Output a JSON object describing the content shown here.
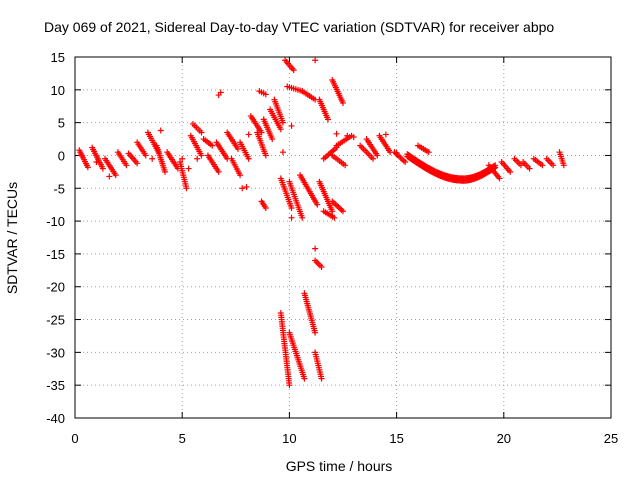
{
  "chart_data": {
    "type": "scatter",
    "title": "Day 069 of 2021, Sidereal Day-to-day VTEC variation (SDTVAR) for receiver abpo",
    "xlabel": "GPS time / hours",
    "ylabel": "SDTVAR / TECUs",
    "xlim": [
      0,
      25
    ],
    "ylim": [
      -40,
      15
    ],
    "xticks": [
      "0",
      "5",
      "10",
      "15",
      "20",
      "25"
    ],
    "yticks": [
      "15",
      "10",
      "5",
      "0",
      "-5",
      "-10",
      "-15",
      "-20",
      "-25",
      "-30",
      "-35",
      "-40"
    ],
    "grid": true,
    "marker": "+",
    "color": "#ff0000",
    "segments": [
      {
        "x": [
          0.2,
          0.6
        ],
        "y": [
          0.8,
          -1.8
        ]
      },
      {
        "x": [
          0.8,
          1.3
        ],
        "y": [
          1.2,
          -2.0
        ]
      },
      {
        "x": [
          1.4,
          1.9
        ],
        "y": [
          -0.5,
          -3.0
        ]
      },
      {
        "x": [
          2.0,
          2.4
        ],
        "y": [
          0.5,
          -1.5
        ]
      },
      {
        "x": [
          2.5,
          2.9
        ],
        "y": [
          0.3,
          -1.2
        ]
      },
      {
        "x": [
          2.9,
          3.3
        ],
        "y": [
          2.0,
          0.0
        ]
      },
      {
        "x": [
          3.4,
          3.9
        ],
        "y": [
          3.5,
          0.5
        ]
      },
      {
        "x": [
          3.8,
          4.2
        ],
        "y": [
          1.5,
          -2.5
        ]
      },
      {
        "x": [
          4.3,
          4.8
        ],
        "y": [
          0.5,
          -2.0
        ]
      },
      {
        "x": [
          4.9,
          5.2
        ],
        "y": [
          -1.0,
          -5.0
        ]
      },
      {
        "x": [
          5.4,
          5.9
        ],
        "y": [
          3.0,
          0.0
        ]
      },
      {
        "x": [
          5.5,
          5.9
        ],
        "y": [
          4.8,
          3.5
        ]
      },
      {
        "x": [
          6.0,
          6.4
        ],
        "y": [
          2.5,
          1.5
        ]
      },
      {
        "x": [
          6.2,
          6.7
        ],
        "y": [
          0.0,
          -2.5
        ]
      },
      {
        "x": [
          6.6,
          7.1
        ],
        "y": [
          2.0,
          -0.5
        ]
      },
      {
        "x": [
          7.1,
          7.6
        ],
        "y": [
          3.5,
          1.0
        ]
      },
      {
        "x": [
          7.3,
          7.7
        ],
        "y": [
          -0.5,
          -3.0
        ]
      },
      {
        "x": [
          7.7,
          8.1
        ],
        "y": [
          2.0,
          -0.5
        ]
      },
      {
        "x": [
          8.2,
          8.7
        ],
        "y": [
          6.0,
          3.5
        ]
      },
      {
        "x": [
          8.5,
          8.9
        ],
        "y": [
          3.5,
          0.0
        ]
      },
      {
        "x": [
          8.8,
          9.2
        ],
        "y": [
          5.5,
          2.5
        ]
      },
      {
        "x": [
          9.1,
          9.6
        ],
        "y": [
          7.0,
          4.0
        ]
      },
      {
        "x": [
          9.3,
          9.7
        ],
        "y": [
          8.5,
          5.0
        ]
      },
      {
        "x": [
          8.6,
          8.9
        ],
        "y": [
          9.8,
          9.3
        ]
      },
      {
        "x": [
          8.7,
          8.9
        ],
        "y": [
          -7.0,
          -8.0
        ]
      },
      {
        "x": [
          9.8,
          10.2
        ],
        "y": [
          14.5,
          13.0
        ]
      },
      {
        "x": [
          9.9,
          10.6
        ],
        "y": [
          10.5,
          9.8
        ]
      },
      {
        "x": [
          10.6,
          11.2
        ],
        "y": [
          9.8,
          8.5
        ]
      },
      {
        "x": [
          11.4,
          11.8
        ],
        "y": [
          8.5,
          5.5
        ]
      },
      {
        "x": [
          12.0,
          12.5
        ],
        "y": [
          11.5,
          8.0
        ]
      },
      {
        "x": [
          9.6,
          10.1
        ],
        "y": [
          -3.5,
          -8.0
        ]
      },
      {
        "x": [
          10.0,
          10.6
        ],
        "y": [
          -4.0,
          -9.5
        ]
      },
      {
        "x": [
          10.5,
          11.3
        ],
        "y": [
          -3.0,
          -7.5
        ]
      },
      {
        "x": [
          9.6,
          10.0
        ],
        "y": [
          -24.0,
          -35.0
        ]
      },
      {
        "x": [
          10.0,
          10.7
        ],
        "y": [
          -27.0,
          -34.0
        ]
      },
      {
        "x": [
          10.7,
          11.2
        ],
        "y": [
          -21.0,
          -27.0
        ]
      },
      {
        "x": [
          11.2,
          11.5
        ],
        "y": [
          -30.0,
          -34.0
        ]
      },
      {
        "x": [
          11.2,
          11.5
        ],
        "y": [
          -16.0,
          -17.0
        ]
      },
      {
        "x": [
          11.4,
          12.0
        ],
        "y": [
          -4.0,
          -8.5
        ]
      },
      {
        "x": [
          11.6,
          12.1
        ],
        "y": [
          -8.5,
          -9.5
        ]
      },
      {
        "x": [
          12.0,
          12.5
        ],
        "y": [
          -7.0,
          -8.5
        ]
      },
      {
        "x": [
          11.6,
          12.2
        ],
        "y": [
          -0.5,
          1.2
        ]
      },
      {
        "x": [
          12.2,
          12.9
        ],
        "y": [
          1.5,
          3.0
        ]
      },
      {
        "x": [
          12.0,
          12.6
        ],
        "y": [
          0.0,
          -1.5
        ]
      },
      {
        "x": [
          13.3,
          13.9
        ],
        "y": [
          1.5,
          -0.5
        ]
      },
      {
        "x": [
          13.6,
          14.1
        ],
        "y": [
          2.5,
          0.0
        ]
      },
      {
        "x": [
          14.2,
          14.7
        ],
        "y": [
          3.0,
          0.5
        ]
      },
      {
        "x": [
          14.9,
          15.4
        ],
        "y": [
          0.5,
          -1.0
        ]
      },
      {
        "x": [
          16.0,
          16.5
        ],
        "y": [
          1.5,
          0.5
        ]
      },
      {
        "x": [
          19.3,
          19.8
        ],
        "y": [
          -1.5,
          -3.5
        ]
      },
      {
        "x": [
          19.9,
          20.3
        ],
        "y": [
          -1.0,
          -2.5
        ]
      },
      {
        "x": [
          20.5,
          20.8
        ],
        "y": [
          -0.5,
          -1.5
        ]
      },
      {
        "x": [
          20.9,
          21.2
        ],
        "y": [
          -1.0,
          -2.0
        ]
      },
      {
        "x": [
          21.4,
          21.8
        ],
        "y": [
          -0.5,
          -1.5
        ]
      },
      {
        "x": [
          22.0,
          22.3
        ],
        "y": [
          -0.5,
          -1.5
        ]
      },
      {
        "x": [
          22.6,
          22.8
        ],
        "y": [
          0.5,
          -1.5
        ]
      }
    ],
    "singles": [
      {
        "x": 0.3,
        "y": 0.0
      },
      {
        "x": 1.0,
        "y": -1.0
      },
      {
        "x": 1.6,
        "y": -3.2
      },
      {
        "x": 3.6,
        "y": -0.5
      },
      {
        "x": 4.0,
        "y": 3.8
      },
      {
        "x": 5.0,
        "y": -0.5
      },
      {
        "x": 5.3,
        "y": -2.0
      },
      {
        "x": 5.7,
        "y": -0.5
      },
      {
        "x": 6.7,
        "y": 9.2
      },
      {
        "x": 6.8,
        "y": 9.6
      },
      {
        "x": 7.8,
        "y": -5.0
      },
      {
        "x": 8.0,
        "y": -4.8
      },
      {
        "x": 8.1,
        "y": 3.2
      },
      {
        "x": 9.7,
        "y": 0.5
      },
      {
        "x": 10.1,
        "y": 4.5
      },
      {
        "x": 10.1,
        "y": -9.5
      },
      {
        "x": 11.2,
        "y": 14.5
      },
      {
        "x": 11.2,
        "y": -14.2
      },
      {
        "x": 12.2,
        "y": 3.3
      },
      {
        "x": 12.7,
        "y": 3.0
      },
      {
        "x": 13.0,
        "y": 2.8
      },
      {
        "x": 14.5,
        "y": 3.2
      },
      {
        "x": 15.0,
        "y": 0.4
      }
    ],
    "arc": {
      "x_start": 15.5,
      "x_end": 19.6,
      "x_min": 18.1,
      "y_min": -3.5,
      "y_start": 0.2,
      "y_end": -1.5
    }
  }
}
